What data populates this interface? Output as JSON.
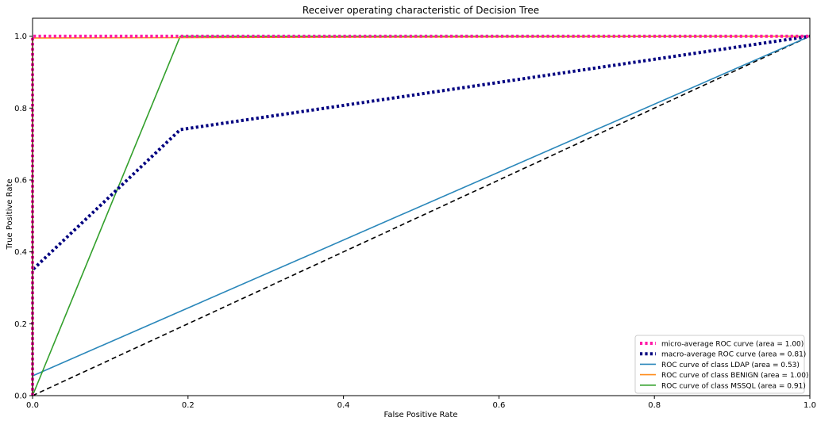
{
  "chart_data": {
    "type": "line",
    "title": "Receiver operating characteristic of Decision Tree",
    "xlabel": "False Positive Rate",
    "ylabel": "True Positive Rate",
    "xlim": [
      0.0,
      1.0
    ],
    "ylim": [
      0.0,
      1.05
    ],
    "xticks": [
      0.0,
      0.2,
      0.4,
      0.6,
      0.8,
      1.0
    ],
    "yticks": [
      0.0,
      0.2,
      0.4,
      0.6,
      0.8,
      1.0
    ],
    "xtick_labels": [
      "0.0",
      "0.2",
      "0.4",
      "0.6",
      "0.8",
      "1.0"
    ],
    "ytick_labels": [
      "0.0",
      "0.2",
      "0.4",
      "0.6",
      "0.8",
      "1.0"
    ],
    "grid": false,
    "legend_position": "lower-right",
    "series": [
      {
        "name": "micro-average ROC curve (area = 1.00)",
        "color": "#ff1aa8",
        "style": "dotted",
        "x": [
          0.0,
          0.0,
          1.0
        ],
        "y": [
          0.0,
          1.0,
          1.0
        ]
      },
      {
        "name": "macro-average ROC curve (area = 0.81)",
        "color": "#000080",
        "style": "dotted",
        "x": [
          0.0,
          0.0,
          0.19,
          1.0
        ],
        "y": [
          0.0,
          0.35,
          0.74,
          1.0
        ]
      },
      {
        "name": "ROC curve of class LDAP (area = 0.53)",
        "color": "#2a87ba",
        "style": "solid",
        "x": [
          0.0,
          0.0,
          1.0
        ],
        "y": [
          0.0,
          0.055,
          1.0
        ]
      },
      {
        "name": "ROC curve of class BENIGN (area = 1.00)",
        "color": "#ff8c1a",
        "style": "solid",
        "x": [
          0.0,
          0.0,
          1.0
        ],
        "y": [
          0.0,
          0.995,
          1.0
        ]
      },
      {
        "name": "ROC curve of class MSSQL (area = 0.91)",
        "color": "#33a02c",
        "style": "solid",
        "x": [
          0.0,
          0.19,
          1.0
        ],
        "y": [
          0.0,
          1.0,
          1.0
        ]
      }
    ],
    "reference_line": {
      "color": "#000000",
      "style": "dashed",
      "x": [
        0.0,
        1.0
      ],
      "y": [
        0.0,
        1.0
      ]
    }
  }
}
